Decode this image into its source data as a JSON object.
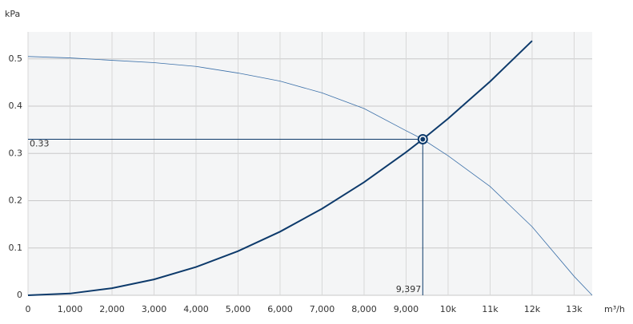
{
  "chart_data": {
    "type": "line",
    "y_label": "kPa",
    "x_label": "m³/h",
    "xlim": [
      0,
      13430
    ],
    "ylim": [
      0,
      0.557
    ],
    "xticks": [
      0,
      {
        "value": 1000,
        "label": "1,000"
      },
      {
        "value": 2000,
        "label": "2,000"
      },
      {
        "value": 3000,
        "label": "3,000"
      },
      {
        "value": 4000,
        "label": "4,000"
      },
      {
        "value": 5000,
        "label": "5,000"
      },
      {
        "value": 6000,
        "label": "6,000"
      },
      {
        "value": 7000,
        "label": "7,000"
      },
      {
        "value": 8000,
        "label": "8,000"
      },
      {
        "value": 9000,
        "label": "9,000"
      },
      {
        "value": 10000,
        "label": "10k"
      },
      {
        "value": 11000,
        "label": "11k"
      },
      {
        "value": 12000,
        "label": "12k"
      },
      {
        "value": 13000,
        "label": "13k"
      }
    ],
    "yticks": [
      0,
      0.1,
      0.2,
      0.3,
      0.4,
      0.5
    ],
    "grid": true,
    "series": [
      {
        "color": "#3a6fa8",
        "width": 0.8,
        "x": [
          0,
          1000,
          2000,
          3000,
          4000,
          5000,
          6000,
          7000,
          8000,
          9000,
          9397,
          10000,
          11000,
          12000,
          13000,
          13430
        ],
        "values": [
          0.505,
          0.502,
          0.497,
          0.492,
          0.484,
          0.47,
          0.453,
          0.428,
          0.395,
          0.348,
          0.33,
          0.295,
          0.23,
          0.145,
          0.04,
          0
        ]
      },
      {
        "color": "#0d3a6b",
        "width": 2,
        "x": [
          0,
          1000,
          2000,
          3000,
          4000,
          5000,
          6000,
          7000,
          8000,
          9000,
          9397,
          10000,
          11000,
          12000
        ],
        "values": [
          0,
          0.0037,
          0.015,
          0.0336,
          0.0598,
          0.0934,
          0.1345,
          0.1831,
          0.2392,
          0.3027,
          0.33,
          0.3737,
          0.4522,
          0.5381
        ]
      }
    ],
    "operating_point": {
      "x": 9397,
      "y": 0.33,
      "x_label": "9,397",
      "y_label": "0.33",
      "color": "#0d3a6b"
    }
  }
}
